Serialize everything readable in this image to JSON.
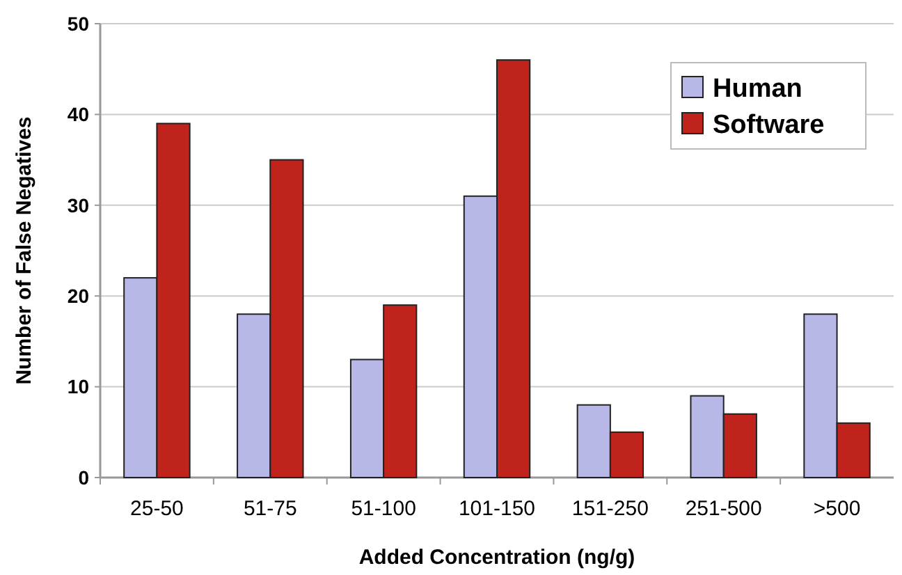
{
  "chart_data": {
    "type": "bar",
    "xlabel": "Added Concentration (ng/g)",
    "ylabel": "Number of False Negatives",
    "categories": [
      "25-50",
      "51-75",
      "51-100",
      "101-150",
      "151-250",
      "251-500",
      ">500"
    ],
    "series": [
      {
        "name": "Human",
        "color": "#b8b8e8",
        "values": [
          22,
          18,
          13,
          31,
          8,
          9,
          18
        ]
      },
      {
        "name": "Software",
        "color": "#c0221c",
        "values": [
          39,
          35,
          19,
          46,
          5,
          7,
          6
        ]
      }
    ],
    "ylim": [
      0,
      50
    ],
    "yticks": [
      0,
      10,
      20,
      30,
      40,
      50
    ],
    "grid": "y",
    "legend": "top right"
  }
}
